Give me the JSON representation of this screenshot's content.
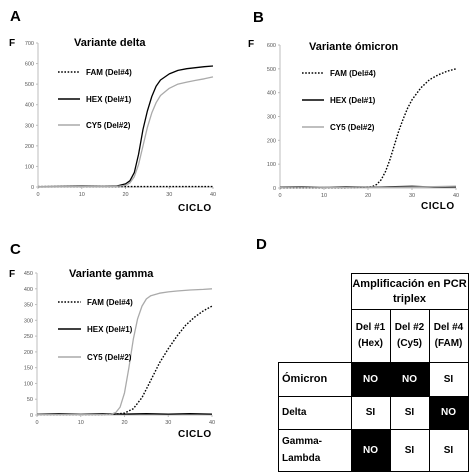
{
  "panels": [
    {
      "letter": "A",
      "chart_data": {
        "type": "line",
        "title": "Variante delta",
        "ylabel": "F",
        "xlabel": "CICLO",
        "xlim": [
          0,
          40
        ],
        "ylim": [
          0,
          700
        ],
        "xticks": [
          0,
          10,
          20,
          30,
          40
        ],
        "yticks": [
          0,
          100,
          200,
          300,
          400,
          500,
          600,
          700
        ],
        "grid": false,
        "legend_position": "left",
        "series": [
          {
            "name": "FAM (Del#4)",
            "style": "dotted",
            "color": "#000000",
            "x": [
              0,
              5,
              10,
              15,
              20,
              22,
              24,
              25,
              26,
              27,
              28,
              29,
              30,
              32,
              34,
              36,
              38,
              40
            ],
            "y": [
              2,
              2,
              2,
              2,
              2,
              2,
              2,
              2,
              2,
              2,
              2,
              2,
              2,
              2,
              2,
              2,
              2,
              2
            ]
          },
          {
            "name": "HEX (Del#1)",
            "style": "solid",
            "color": "#000000",
            "x": [
              0,
              5,
              10,
              15,
              18,
              20,
              21,
              22,
              23,
              24,
              25,
              26,
              27,
              28,
              30,
              32,
              34,
              36,
              38,
              40
            ],
            "y": [
              2,
              3,
              4,
              3,
              5,
              15,
              30,
              70,
              160,
              280,
              370,
              440,
              490,
              520,
              550,
              567,
              575,
              580,
              585,
              588
            ]
          },
          {
            "name": "CY5 (Del#2)",
            "style": "solid",
            "color": "#aaaaaa",
            "x": [
              0,
              5,
              10,
              15,
              18,
              20,
              21,
              22,
              23,
              24,
              25,
              26,
              27,
              28,
              30,
              32,
              34,
              36,
              38,
              40
            ],
            "y": [
              2,
              2,
              2,
              2,
              3,
              8,
              20,
              50,
              110,
              200,
              290,
              360,
              410,
              445,
              480,
              500,
              510,
              518,
              526,
              535
            ]
          }
        ]
      }
    },
    {
      "letter": "B",
      "chart_data": {
        "type": "line",
        "title": "Variante ómicron",
        "ylabel": "F",
        "xlabel": "CICLO",
        "xlim": [
          0,
          40
        ],
        "ylim": [
          0,
          600
        ],
        "xticks": [
          0,
          10,
          20,
          30,
          40
        ],
        "yticks": [
          0,
          100,
          200,
          300,
          400,
          500,
          600
        ],
        "grid": false,
        "legend_position": "left",
        "series": [
          {
            "name": "FAM (Del#4)",
            "style": "dotted",
            "color": "#000000",
            "x": [
              0,
              5,
              10,
              15,
              19,
              21,
              22,
              23,
              24,
              25,
              26,
              27,
              28,
              29,
              30,
              32,
              34,
              36,
              38,
              40
            ],
            "y": [
              2,
              2,
              2,
              2,
              3,
              6,
              15,
              35,
              70,
              120,
              180,
              240,
              290,
              335,
              370,
              420,
              455,
              475,
              490,
              500
            ]
          },
          {
            "name": "HEX (Del#1)",
            "style": "solid",
            "color": "#000000",
            "x": [
              0,
              5,
              10,
              15,
              20,
              25,
              30,
              35,
              40
            ],
            "y": [
              4,
              6,
              3,
              5,
              4,
              5,
              7,
              4,
              5
            ]
          },
          {
            "name": "CY5 (Del#2)",
            "style": "solid",
            "color": "#aaaaaa",
            "x": [
              0,
              5,
              10,
              15,
              20,
              25,
              30,
              35,
              40
            ],
            "y": [
              3,
              4,
              3,
              3,
              4,
              3,
              4,
              6,
              8
            ]
          }
        ]
      }
    },
    {
      "letter": "C",
      "chart_data": {
        "type": "line",
        "title": "Variante gamma",
        "ylabel": "F",
        "xlabel": "CICLO",
        "xlim": [
          0,
          40
        ],
        "ylim": [
          0,
          450
        ],
        "xticks": [
          0,
          10,
          20,
          30,
          40
        ],
        "yticks": [
          0,
          50,
          100,
          150,
          200,
          250,
          300,
          350,
          400,
          450
        ],
        "grid": false,
        "legend_position": "left",
        "series": [
          {
            "name": "FAM (Del#4)",
            "style": "dotted",
            "color": "#000000",
            "x": [
              0,
              5,
              10,
              15,
              18,
              20,
              22,
              24,
              26,
              28,
              30,
              32,
              34,
              36,
              38,
              40
            ],
            "y": [
              2,
              2,
              2,
              2,
              3,
              6,
              20,
              55,
              110,
              165,
              210,
              250,
              285,
              310,
              330,
              345
            ]
          },
          {
            "name": "HEX (Del#1)",
            "style": "solid",
            "color": "#000000",
            "x": [
              0,
              5,
              10,
              15,
              20,
              25,
              30,
              35,
              40
            ],
            "y": [
              3,
              4,
              3,
              4,
              3,
              4,
              3,
              4,
              3
            ]
          },
          {
            "name": "CY5 (Del#2)",
            "style": "solid",
            "color": "#aaaaaa",
            "x": [
              0,
              5,
              10,
              15,
              17,
              18,
              19,
              20,
              21,
              22,
              23,
              24,
              25,
              26,
              28,
              30,
              32,
              35,
              38,
              40
            ],
            "y": [
              2,
              2,
              2,
              2,
              3,
              8,
              25,
              70,
              150,
              240,
              305,
              345,
              368,
              378,
              386,
              390,
              393,
              396,
              398,
              400
            ]
          }
        ]
      }
    }
  ],
  "table": {
    "letter": "D",
    "header": "Amplificación en PCR triplex",
    "columns": [
      "Del #1 (Hex)",
      "Del #2 (Cy5)",
      "Del #4 (FAM)"
    ],
    "rows": [
      {
        "label": "Ómicron",
        "cells": [
          "NO",
          "NO",
          "SI"
        ]
      },
      {
        "label": "Delta",
        "cells": [
          "SI",
          "SI",
          "NO"
        ]
      },
      {
        "label": "Gamma-Lambda",
        "cells": [
          "NO",
          "SI",
          "SI"
        ]
      }
    ]
  }
}
